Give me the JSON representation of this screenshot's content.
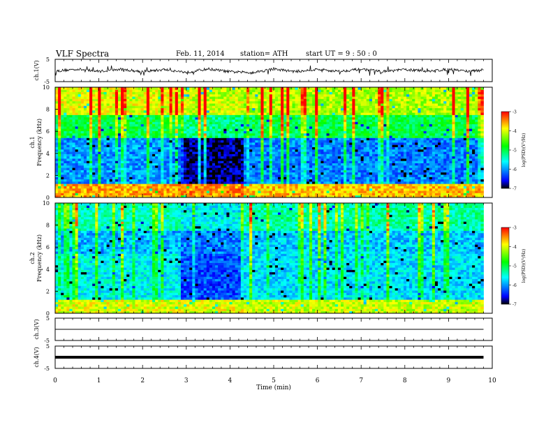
{
  "header": {
    "title": "VLF  Spectra",
    "date": "Feb. 11, 2014",
    "station": "station= ATH",
    "start": "start  UT =  9  : 50 : 0"
  },
  "colorbar": {
    "label": "log(PSD)(V²/Hz)",
    "ticks": [
      "-3",
      "-4",
      "-5",
      "-6",
      "-7"
    ],
    "colors": [
      "#ff0000",
      "#ffff00",
      "#00ff00",
      "#00ffff",
      "#0000ff",
      "#000000"
    ]
  },
  "chart_data": [
    {
      "type": "line",
      "panel": "ch1-waveform",
      "ylabel": "ch.1(V)",
      "yticks": [
        "5",
        "-5"
      ],
      "ylim": [
        -5,
        5
      ],
      "x": [
        0,
        0.5,
        1,
        1.5,
        2,
        2.5,
        3,
        3.5,
        4,
        4.5,
        5,
        5.5,
        6,
        6.5,
        7,
        7.5,
        8,
        8.5,
        9,
        9.5,
        9.8
      ],
      "values": [
        -0.3,
        0.6,
        -0.4,
        0.5,
        -0.5,
        0.4,
        -0.8,
        0.7,
        -0.6,
        -0.9,
        0.6,
        -0.5,
        0.5,
        -0.4,
        0.6,
        -0.5,
        0.4,
        -0.3,
        0.5,
        -0.4,
        0.2
      ]
    },
    {
      "type": "heatmap",
      "panel": "ch1-spectrogram",
      "ylabel": "ch.1 Frequency  (kHz)",
      "yticks": [
        "0",
        "2",
        "4",
        "6",
        "8",
        "10"
      ],
      "ylim": [
        0,
        10
      ],
      "xlim": [
        0,
        9.8
      ],
      "frequency_bands_khz": [
        [
          0,
          1.2
        ],
        [
          1.2,
          5.5
        ],
        [
          5.5,
          7.5
        ],
        [
          7.5,
          10
        ]
      ],
      "time_segments_min": [
        [
          0,
          2.9
        ],
        [
          2.9,
          4.3
        ],
        [
          4.3,
          9.8
        ]
      ],
      "log_psd": [
        [
          -3.6,
          -3.5,
          -3.7
        ],
        [
          -6.0,
          -6.8,
          -6.1
        ],
        [
          -5.0,
          -5.2,
          -5.0
        ],
        [
          -4.0,
          -4.1,
          -4.2
        ]
      ]
    },
    {
      "type": "heatmap",
      "panel": "ch2-spectrogram",
      "ylabel": "ch.2 Frequency  (kHz)",
      "yticks": [
        "0",
        "2",
        "4",
        "6",
        "8",
        "10"
      ],
      "ylim": [
        0,
        10
      ],
      "xlim": [
        0,
        9.8
      ],
      "frequency_bands_khz": [
        [
          0,
          1.2
        ],
        [
          1.2,
          5.5
        ],
        [
          5.5,
          7.5
        ],
        [
          7.5,
          10
        ]
      ],
      "time_segments_min": [
        [
          0,
          2.9
        ],
        [
          2.9,
          4.3
        ],
        [
          4.3,
          9.8
        ]
      ],
      "log_psd": [
        [
          -4.0,
          -4.0,
          -4.1
        ],
        [
          -5.6,
          -6.3,
          -5.7
        ],
        [
          -5.9,
          -6.1,
          -5.8
        ],
        [
          -5.4,
          -5.6,
          -5.3
        ]
      ]
    },
    {
      "type": "line",
      "panel": "ch3-waveform",
      "ylabel": "ch.3(V)",
      "yticks": [
        "5",
        "-5"
      ],
      "ylim": [
        -5,
        5
      ],
      "x": [
        0,
        9.8
      ],
      "values": [
        0,
        0
      ]
    },
    {
      "type": "line",
      "panel": "ch4-waveform",
      "ylabel": "ch.4(V)",
      "yticks": [
        "5",
        "-5"
      ],
      "ylim": [
        -5,
        5
      ],
      "x": [
        0,
        9.8
      ],
      "values": [
        0,
        0
      ]
    }
  ],
  "xaxis": {
    "label": "Time  (min)",
    "ticks": [
      "0",
      "1",
      "2",
      "3",
      "4",
      "5",
      "6",
      "7",
      "8",
      "9",
      "10"
    ],
    "xlim": [
      0,
      10
    ]
  }
}
